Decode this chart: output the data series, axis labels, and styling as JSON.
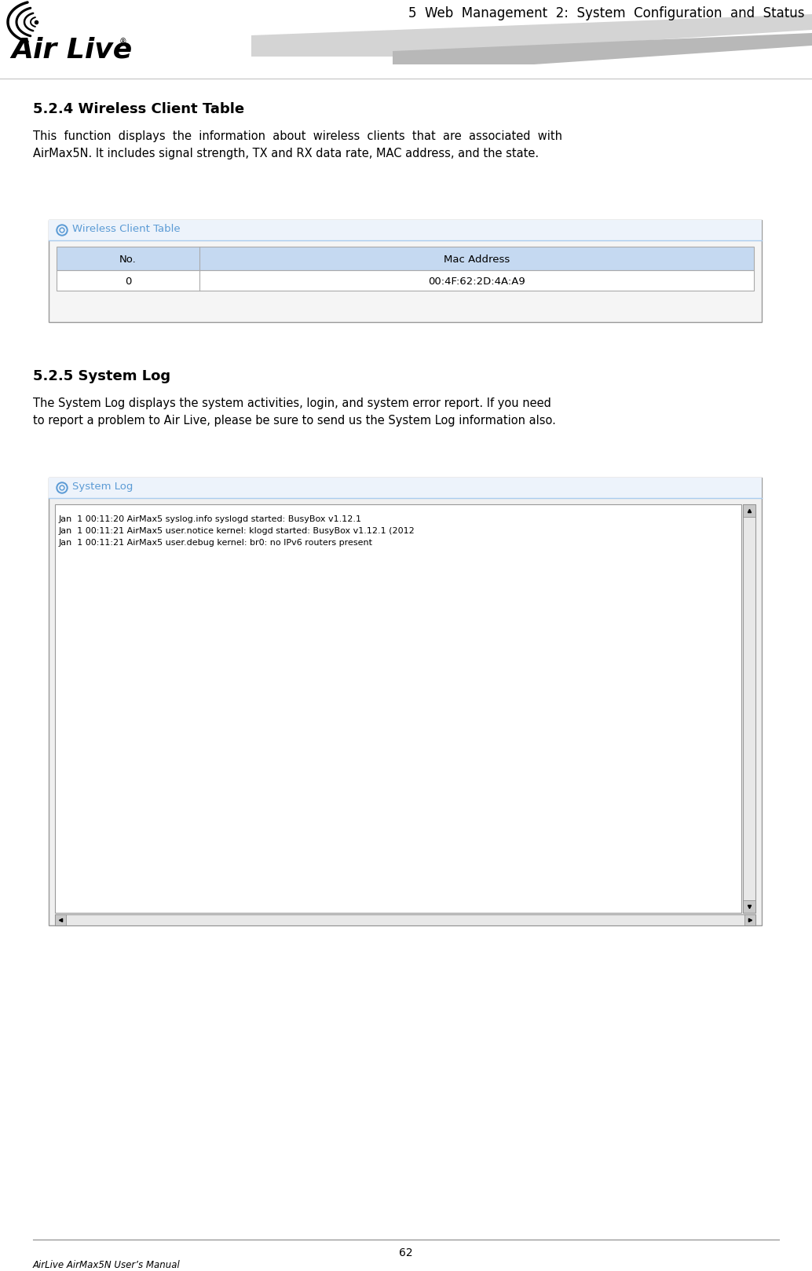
{
  "page_bg": "#ffffff",
  "header_title": "5  Web  Management  2:  System  Configuration  and  Status",
  "header_title_color": "#000000",
  "header_title_fontsize": 12,
  "section1_title": "5.2.4 Wireless Client Table",
  "section1_body1": "This  function  displays  the  information  about  wireless  clients  that  are  associated  with\nAirMax5N. It includes signal strength, TX and RX data rate, MAC address, and the state.",
  "section1_table_title": "Wireless Client Table",
  "section1_table_title_color": "#5b9bd5",
  "section1_table_header": [
    "No.",
    "Mac Address"
  ],
  "section1_table_header_bg": "#c5d9f1",
  "section1_table_row": [
    "0",
    "00:4F:62:2D:4A:A9"
  ],
  "section1_table_border": "#aaaaaa",
  "section2_title": "5.2.5 System Log",
  "section2_body": "The System Log displays the system activities, login, and system error report. If you need\nto report a problem to Air Live, please be sure to send us the System Log information also.",
  "section2_log_title": "System Log",
  "section2_log_title_color": "#5b9bd5",
  "section2_log_lines": [
    "Jan  1 00:11:20 AirMax5 syslog.info syslogd started: BusyBox v1.12.1",
    "Jan  1 00:11:21 AirMax5 user.notice kernel: klogd started: BusyBox v1.12.1 (2012",
    "Jan  1 00:11:21 AirMax5 user.debug kernel: br0: no IPv6 routers present"
  ],
  "footer_page": "62",
  "footer_left": "AirLive AirMax5N User’s Manual",
  "body_fontsize": 10.5,
  "section_title_fontsize": 13,
  "table_fontsize": 9.5,
  "log_fontsize": 8,
  "deco_light": "#d4d4d4",
  "deco_dark": "#b8b8b8"
}
